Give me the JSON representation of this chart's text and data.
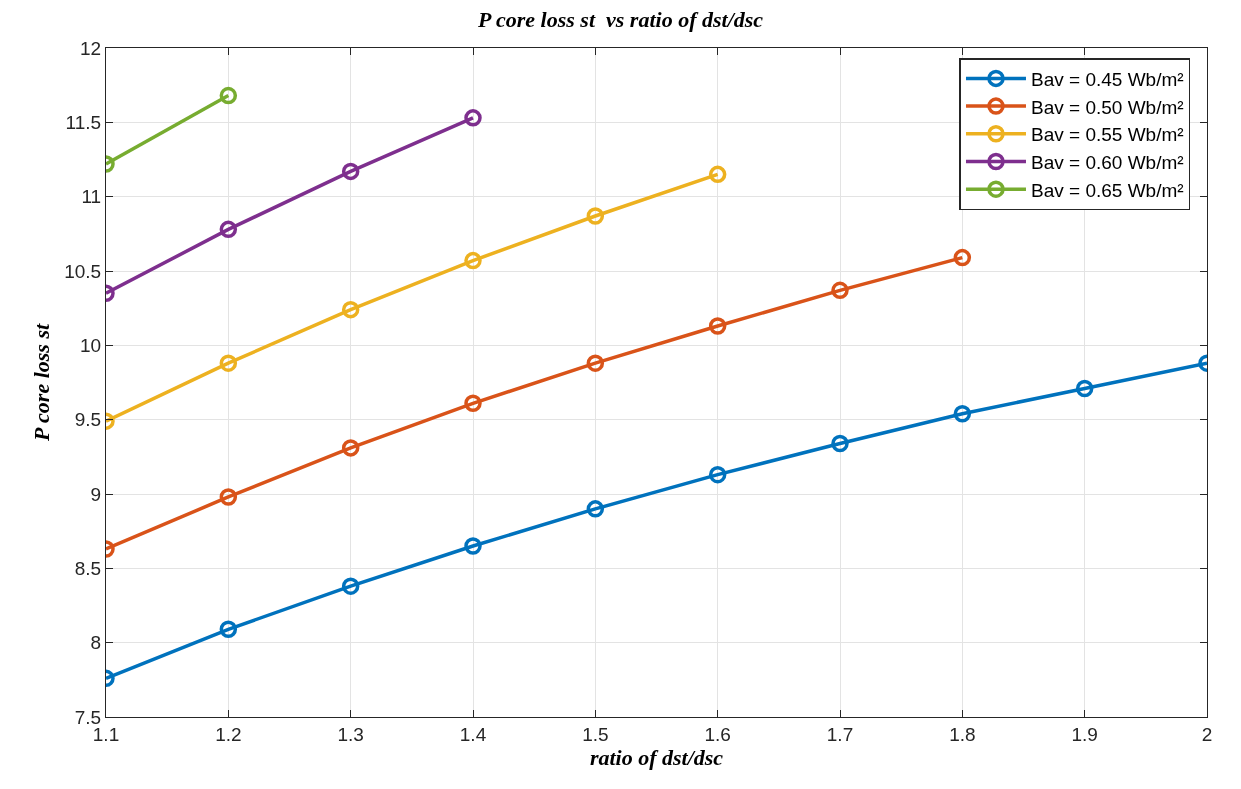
{
  "chart_data": {
    "type": "line",
    "title": "P core loss st  vs ratio of dst/dsc",
    "xlabel": "ratio of dst/dsc",
    "ylabel": "P core loss st",
    "x": [
      1.1,
      1.2,
      1.3,
      1.4,
      1.5,
      1.6,
      1.7,
      1.8,
      1.9,
      2.0
    ],
    "series": [
      {
        "name": "Bav = 0.45 Wb/m²",
        "color": "#0072bd",
        "values": [
          7.76,
          8.09,
          8.38,
          8.65,
          8.9,
          9.13,
          9.34,
          9.54,
          9.71,
          9.88
        ]
      },
      {
        "name": "Bav = 0.50 Wb/m²",
        "color": "#d95319",
        "values": [
          8.63,
          8.98,
          9.31,
          9.61,
          9.88,
          10.13,
          10.37,
          10.59,
          null,
          null
        ]
      },
      {
        "name": "Bav = 0.55 Wb/m²",
        "color": "#edb120",
        "values": [
          9.49,
          9.88,
          10.24,
          10.57,
          10.87,
          11.15,
          null,
          null,
          null,
          null
        ]
      },
      {
        "name": "Bav = 0.60 Wb/m²",
        "color": "#7e2f8e",
        "values": [
          10.35,
          10.78,
          11.17,
          11.53,
          null,
          null,
          null,
          null,
          null,
          null
        ]
      },
      {
        "name": "Bav = 0.65 Wb/m²",
        "color": "#77ac30",
        "values": [
          11.22,
          11.68,
          null,
          null,
          null,
          null,
          null,
          null,
          null,
          null
        ]
      }
    ],
    "xlim": [
      1.1,
      2.0
    ],
    "xticks": [
      1.1,
      1.2,
      1.3,
      1.4,
      1.5,
      1.6,
      1.7,
      1.8,
      1.9,
      2
    ],
    "ylim": [
      7.5,
      12
    ],
    "yticks": [
      7.5,
      8,
      8.5,
      9,
      9.5,
      10,
      10.5,
      11,
      11.5,
      12
    ],
    "grid": true,
    "legend": "top right",
    "marker": "circle",
    "line_style": "solid"
  }
}
